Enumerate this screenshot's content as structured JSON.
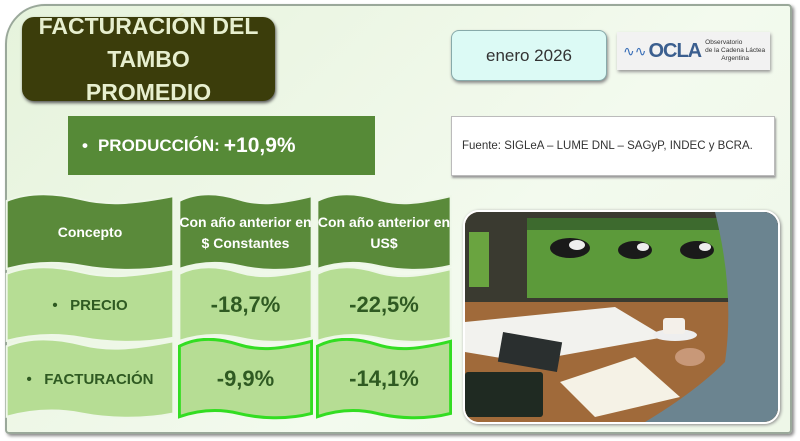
{
  "header": {
    "title_line1": "FACTURACIÓN DEL TAMBO",
    "title_line2": "PROMEDIO",
    "date": "enero 2026"
  },
  "logo": {
    "name": "OCLA",
    "line1": "Observatorio",
    "line2": "de la Cadena Láctea",
    "line3": "Argentina"
  },
  "production": {
    "bullet": "•",
    "label": "PRODUCCIÓN:",
    "value": "+10,9%"
  },
  "source": "Fuente: SIGLeA – LUME DNL – SAGyP, INDEC y BCRA.",
  "table": {
    "headers": [
      "Concepto",
      "Con año anterior en $ Constantes",
      "Con año anterior en US$"
    ],
    "rows": [
      {
        "concept": "PRECIO",
        "constantes": "-18,7%",
        "usd": "-22,5%"
      },
      {
        "concept": "FACTURACIÓN",
        "constantes": "-9,9%",
        "usd": "-14,1%"
      }
    ],
    "bullet": "•"
  },
  "colors": {
    "header_cell": "#5a8a3a",
    "body_cell": "#b6dd94",
    "highlight_border": "#33dd22",
    "title_bg": "#3b3d0b"
  }
}
